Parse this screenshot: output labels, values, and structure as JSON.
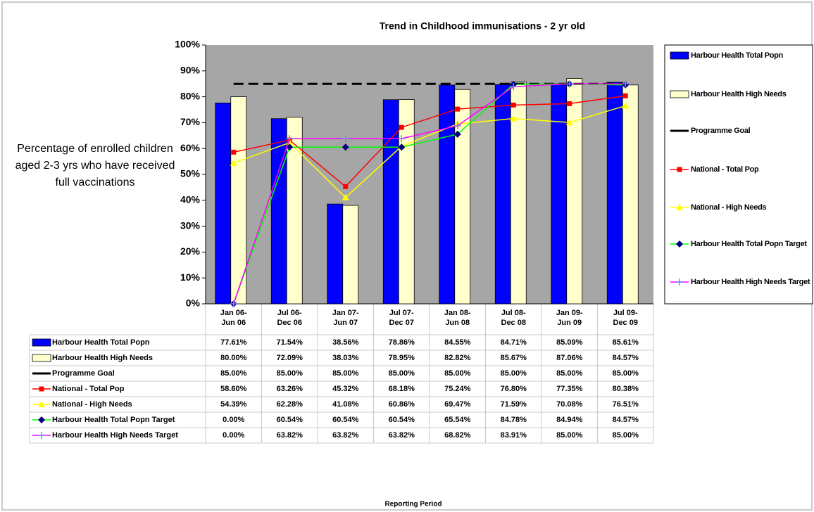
{
  "chart_data": {
    "type": "bar",
    "title": "Trend in Childhood immunisations - 2 yr old",
    "y_label": "Percentage of enrolled children aged 2-3 yrs who have received full vaccinations",
    "x_label": "Reporting Period",
    "categories": [
      "Jan 06-\nJun 06",
      "Jul 06-\nDec 06",
      "Jan 07-\nJun 07",
      "Jul 07-\nDec 07",
      "Jan 08-\nJun 08",
      "Jul 08-\nDec 08",
      "Jan 09-\nJun 09",
      "Jul 09-\nDec 09"
    ],
    "ylim": [
      0,
      100
    ],
    "yticks": [
      {
        "value": 0,
        "label": "0%"
      },
      {
        "value": 10,
        "label": "10%"
      },
      {
        "value": 20,
        "label": "20%"
      },
      {
        "value": 30,
        "label": "30%"
      },
      {
        "value": 40,
        "label": "40%"
      },
      {
        "value": 50,
        "label": "50%"
      },
      {
        "value": 60,
        "label": "60%"
      },
      {
        "value": 70,
        "label": "70%"
      },
      {
        "value": 80,
        "label": "80%"
      },
      {
        "value": 90,
        "label": "90%"
      },
      {
        "value": 100,
        "label": "100%"
      }
    ],
    "grid": false,
    "legend": "right",
    "plot_background": "#a6a6a6",
    "series": [
      {
        "name": "Harbour Health Total Popn",
        "type": "bar",
        "color": "#0000ff",
        "values": [
          77.61,
          71.54,
          38.56,
          78.86,
          84.55,
          84.71,
          85.09,
          85.61
        ],
        "value_labels": [
          "77.61%",
          "71.54%",
          "38.56%",
          "78.86%",
          "84.55%",
          "84.71%",
          "85.09%",
          "85.61%"
        ]
      },
      {
        "name": "Harbour Health High Needs",
        "type": "bar",
        "color": "#ffffcc",
        "values": [
          80.0,
          72.09,
          38.03,
          78.95,
          82.82,
          85.67,
          87.06,
          84.57
        ],
        "value_labels": [
          "80.00%",
          "72.09%",
          "38.03%",
          "78.95%",
          "82.82%",
          "85.67%",
          "87.06%",
          "84.57%"
        ]
      },
      {
        "name": "Programme Goal",
        "type": "line",
        "color": "#000000",
        "dashed": true,
        "marker": "none",
        "values": [
          85,
          85,
          85,
          85,
          85,
          85,
          85,
          85
        ],
        "value_labels": [
          "85.00%",
          "85.00%",
          "85.00%",
          "85.00%",
          "85.00%",
          "85.00%",
          "85.00%",
          "85.00%"
        ]
      },
      {
        "name": "National - Total Pop",
        "type": "line",
        "color": "#ff0000",
        "marker": "square",
        "marker_color": "#ff0000",
        "values": [
          58.6,
          63.26,
          45.32,
          68.18,
          75.24,
          76.8,
          77.35,
          80.38
        ],
        "value_labels": [
          "58.60%",
          "63.26%",
          "45.32%",
          "68.18%",
          "75.24%",
          "76.80%",
          "77.35%",
          "80.38%"
        ]
      },
      {
        "name": "National - High Needs",
        "type": "line",
        "color": "#ffff00",
        "marker": "triangle",
        "marker_color": "#ffff00",
        "values": [
          54.39,
          62.28,
          41.08,
          60.86,
          69.47,
          71.59,
          70.08,
          76.51
        ],
        "value_labels": [
          "54.39%",
          "62.28%",
          "41.08%",
          "60.86%",
          "69.47%",
          "71.59%",
          "70.08%",
          "76.51%"
        ]
      },
      {
        "name": "Harbour Health Total Popn Target",
        "type": "line",
        "color": "#00ff00",
        "marker": "diamond",
        "marker_color": "#000080",
        "values": [
          0.0,
          60.54,
          60.54,
          60.54,
          65.54,
          84.78,
          84.94,
          84.57
        ],
        "value_labels": [
          "0.00%",
          "60.54%",
          "60.54%",
          "60.54%",
          "65.54%",
          "84.78%",
          "84.94%",
          "84.57%"
        ]
      },
      {
        "name": "Harbour Health High Needs Target",
        "type": "line",
        "color": "#ff00ff",
        "marker": "plus",
        "marker_color": "#8080ff",
        "values": [
          0.0,
          63.82,
          63.82,
          63.82,
          68.82,
          83.91,
          85.0,
          85.0
        ],
        "value_labels": [
          "0.00%",
          "63.82%",
          "63.82%",
          "63.82%",
          "68.82%",
          "83.91%",
          "85.00%",
          "85.00%"
        ]
      }
    ]
  }
}
